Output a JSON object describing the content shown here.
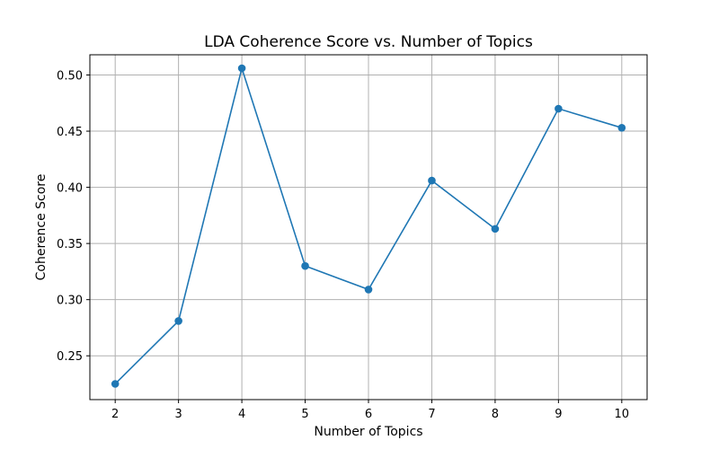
{
  "chart_data": {
    "type": "line",
    "title": "LDA Coherence Score vs. Number of Topics",
    "xlabel": "Number of Topics",
    "ylabel": "Coherence Score",
    "x": [
      2,
      3,
      4,
      5,
      6,
      7,
      8,
      9,
      10
    ],
    "series": [
      {
        "values": [
          0.225,
          0.281,
          0.506,
          0.33,
          0.309,
          0.406,
          0.363,
          0.47,
          0.453
        ],
        "color": "#1f77b4",
        "marker": "circle"
      }
    ],
    "xticks": [
      "2",
      "3",
      "4",
      "5",
      "6",
      "7",
      "8",
      "9",
      "10"
    ],
    "yticks": [
      "0.25",
      "0.30",
      "0.35",
      "0.40",
      "0.45",
      "0.50"
    ],
    "xlim": [
      1.6,
      10.4
    ],
    "ylim": [
      0.211,
      0.518
    ],
    "grid": true
  }
}
